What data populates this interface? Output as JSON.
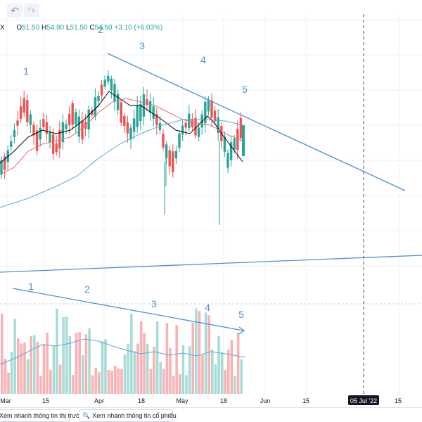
{
  "toolbar": {
    "undo_icon": "undo-icon",
    "redo_icon": "redo-icon"
  },
  "ohlc": {
    "symbol_tail": "X",
    "open_label": "O",
    "open": "51.50",
    "high_label": "H",
    "high": "54.80",
    "low_label": "L",
    "low": "51.50",
    "close_label": "C",
    "close": "54.50",
    "change": "+3.10 (+6.03%)"
  },
  "bottom_bar": {
    "market_overview": "Xem nhanh thông tin thị trường",
    "stock_overview": "Xem nhanh thông tin cổ phiếu"
  },
  "colors": {
    "up": "#26a69a",
    "down": "#ef5350",
    "trendline": "#4a90d9",
    "ma_fast": "#000000",
    "ma_mid": "#e57373",
    "ma_slow": "#5fa8d3"
  },
  "chart_data": {
    "type": "candlestick",
    "x_ticks": [
      "Mar",
      "15",
      "Apr",
      "18",
      "May",
      "18",
      "Jun",
      "15",
      "05 Jul '22",
      "15"
    ],
    "highlighted_tick": "05 Jul '22",
    "wave_labels_price": [
      "1",
      "2",
      "3",
      "4",
      "5"
    ],
    "wave_labels_volume": [
      "1",
      "2",
      "3",
      "4",
      "5"
    ],
    "series": [
      {
        "name": "OHLC",
        "last": {
          "open": 51.5,
          "high": 54.8,
          "low": 51.5,
          "close": 54.5
        }
      }
    ]
  }
}
